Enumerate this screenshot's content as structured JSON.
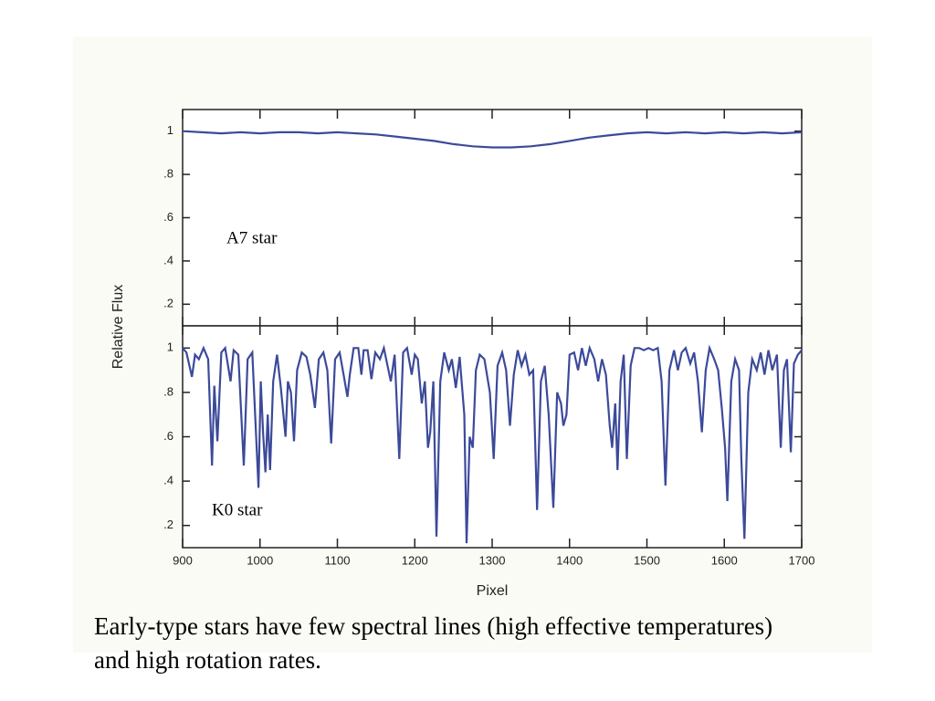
{
  "chart_data": [
    {
      "type": "line",
      "annotation": "A7 star",
      "ylabel": "Relative Flux",
      "xlim": [
        900,
        1700
      ],
      "xticks": [
        900,
        1000,
        1100,
        1200,
        1300,
        1400,
        1500,
        1600,
        1700
      ],
      "show_xtick_labels": false,
      "ylim": [
        0.1,
        1.1
      ],
      "yticks": [
        {
          "value": 0.2,
          "label": ".2"
        },
        {
          "value": 0.4,
          "label": ".4"
        },
        {
          "value": 0.6,
          "label": ".6"
        },
        {
          "value": 0.8,
          "label": ".8"
        },
        1
      ],
      "x": [
        900,
        925,
        950,
        975,
        1000,
        1025,
        1050,
        1075,
        1100,
        1125,
        1150,
        1175,
        1200,
        1225,
        1250,
        1275,
        1300,
        1325,
        1350,
        1375,
        1400,
        1425,
        1450,
        1475,
        1500,
        1525,
        1550,
        1575,
        1600,
        1625,
        1650,
        1675,
        1700
      ],
      "series": [
        {
          "color": "#3c4a9a",
          "values": [
            1.0,
            0.995,
            0.99,
            0.995,
            0.99,
            0.995,
            0.995,
            0.99,
            0.995,
            0.99,
            0.985,
            0.975,
            0.965,
            0.955,
            0.94,
            0.93,
            0.925,
            0.925,
            0.93,
            0.94,
            0.955,
            0.97,
            0.98,
            0.99,
            0.995,
            0.99,
            0.995,
            0.99,
            0.995,
            0.99,
            0.995,
            0.99,
            0.995
          ]
        }
      ]
    },
    {
      "type": "line",
      "annotation": "K0 star",
      "xlabel": "Pixel",
      "xlim": [
        900,
        1700
      ],
      "xticks": [
        900,
        1000,
        1100,
        1200,
        1300,
        1400,
        1500,
        1600,
        1700
      ],
      "show_xtick_labels": true,
      "ylim": [
        0.1,
        1.1
      ],
      "yticks": [
        {
          "value": 0.2,
          "label": ".2"
        },
        {
          "value": 0.4,
          "label": ".4"
        },
        {
          "value": 0.6,
          "label": ".6"
        },
        {
          "value": 0.8,
          "label": ".8"
        },
        1
      ],
      "x": [
        900,
        905,
        912,
        916,
        921,
        927,
        933,
        938,
        941,
        945,
        950,
        955,
        962,
        966,
        972,
        979,
        984,
        990,
        998,
        1001,
        1004,
        1007,
        1010,
        1013,
        1017,
        1022,
        1027,
        1033,
        1036,
        1040,
        1044,
        1048,
        1054,
        1060,
        1065,
        1071,
        1076,
        1082,
        1087,
        1092,
        1097,
        1103,
        1108,
        1113,
        1116,
        1121,
        1127,
        1131,
        1134,
        1139,
        1144,
        1149,
        1155,
        1160,
        1169,
        1174,
        1180,
        1185,
        1190,
        1196,
        1200,
        1204,
        1209,
        1213,
        1217,
        1220,
        1224,
        1228,
        1233,
        1238,
        1244,
        1248,
        1253,
        1258,
        1264,
        1267,
        1271,
        1275,
        1279,
        1284,
        1290,
        1297,
        1302,
        1307,
        1313,
        1318,
        1323,
        1328,
        1333,
        1338,
        1343,
        1348,
        1353,
        1358,
        1363,
        1368,
        1373,
        1379,
        1384,
        1389,
        1392,
        1396,
        1400,
        1406,
        1411,
        1416,
        1421,
        1426,
        1432,
        1437,
        1442,
        1447,
        1452,
        1455,
        1459,
        1462,
        1466,
        1470,
        1474,
        1479,
        1484,
        1490,
        1496,
        1502,
        1508,
        1514,
        1519,
        1524,
        1529,
        1535,
        1540,
        1545,
        1550,
        1556,
        1561,
        1566,
        1571,
        1576,
        1581,
        1587,
        1592,
        1597,
        1601,
        1604,
        1609,
        1614,
        1619,
        1622,
        1626,
        1631,
        1636,
        1642,
        1647,
        1652,
        1657,
        1662,
        1668,
        1673,
        1677,
        1681,
        1686,
        1690,
        1695,
        1700
      ],
      "series": [
        {
          "color": "#3c4a9a",
          "values": [
            1.0,
            0.98,
            0.87,
            0.97,
            0.95,
            1.0,
            0.95,
            0.47,
            0.83,
            0.58,
            0.98,
            1.0,
            0.85,
            0.99,
            0.97,
            0.47,
            0.95,
            0.98,
            0.37,
            0.85,
            0.62,
            0.44,
            0.7,
            0.45,
            0.85,
            0.97,
            0.82,
            0.6,
            0.85,
            0.8,
            0.58,
            0.9,
            0.98,
            0.96,
            0.88,
            0.73,
            0.95,
            0.98,
            0.9,
            0.57,
            0.95,
            0.98,
            0.88,
            0.78,
            0.88,
            1.0,
            1.0,
            0.88,
            0.99,
            0.99,
            0.86,
            0.98,
            0.95,
            1.0,
            0.85,
            0.97,
            0.5,
            0.98,
            1.0,
            0.88,
            0.97,
            0.95,
            0.75,
            0.85,
            0.55,
            0.62,
            0.85,
            0.15,
            0.85,
            0.98,
            0.9,
            0.95,
            0.82,
            0.96,
            0.7,
            0.12,
            0.6,
            0.55,
            0.9,
            0.97,
            0.95,
            0.8,
            0.5,
            0.92,
            0.98,
            0.9,
            0.65,
            0.88,
            0.99,
            0.92,
            0.97,
            0.88,
            0.9,
            0.27,
            0.85,
            0.92,
            0.7,
            0.28,
            0.8,
            0.75,
            0.65,
            0.7,
            0.97,
            0.98,
            0.9,
            1.0,
            0.92,
            1.0,
            0.95,
            0.85,
            0.95,
            0.88,
            0.65,
            0.55,
            0.75,
            0.45,
            0.85,
            0.97,
            0.5,
            0.92,
            1.0,
            1.0,
            0.99,
            1.0,
            0.99,
            1.0,
            0.85,
            0.38,
            0.9,
            0.99,
            0.9,
            0.98,
            1.0,
            0.93,
            0.98,
            0.85,
            0.62,
            0.9,
            1.0,
            0.95,
            0.9,
            0.72,
            0.55,
            0.31,
            0.85,
            0.95,
            0.9,
            0.5,
            0.14,
            0.8,
            0.95,
            0.9,
            0.98,
            0.88,
            0.99,
            0.9,
            0.97,
            0.55,
            0.9,
            0.95,
            0.53,
            0.93,
            0.97,
            0.99
          ]
        }
      ]
    }
  ],
  "caption": "Early-type stars have few spectral lines (high effective temperatures) and high rotation rates."
}
